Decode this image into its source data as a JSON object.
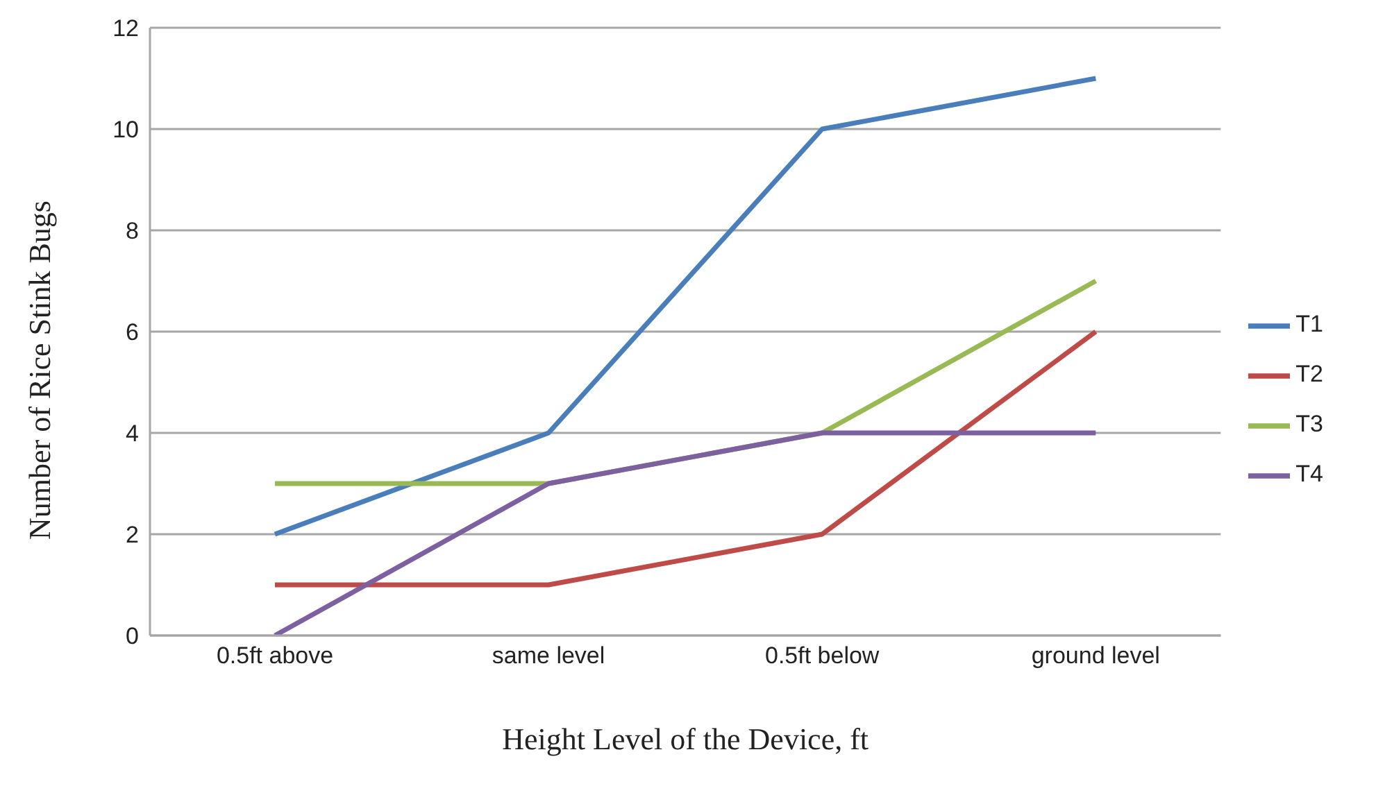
{
  "chart_data": {
    "type": "line",
    "xlabel": "Height Level of the Device, ft",
    "ylabel": "Number of Rice Stink Bugs",
    "categories": [
      "0.5ft above",
      "same level",
      "0.5ft below",
      "ground level"
    ],
    "series": [
      {
        "name": "T1",
        "color": "#4a7ebb",
        "values": [
          2,
          4,
          10,
          11
        ]
      },
      {
        "name": "T2",
        "color": "#be4b48",
        "values": [
          1,
          1,
          2,
          6
        ]
      },
      {
        "name": "T3",
        "color": "#98b954",
        "values": [
          3,
          3,
          4,
          7
        ]
      },
      {
        "name": "T4",
        "color": "#7d60a0",
        "values": [
          0,
          3,
          4,
          4
        ]
      }
    ],
    "ylim": [
      0,
      12
    ],
    "yticks": [
      0,
      2,
      4,
      6,
      8,
      10,
      12
    ],
    "grid": "y",
    "legend": "right",
    "marker": "none",
    "line_style": "solid"
  }
}
